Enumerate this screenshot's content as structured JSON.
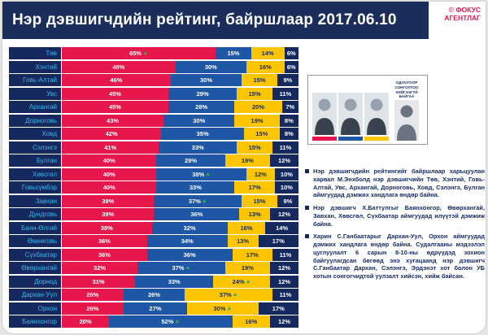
{
  "header": {
    "title": "Нэр дэвшигчдийн рейтинг, байршлаар 2017.06.10",
    "brand_line1": "© ФОКУС",
    "brand_line2": "АГЕНТЛАГ"
  },
  "colors": {
    "header_bg": "#1b2d5b",
    "brand_red": "#e8174b",
    "region_label_bg": "#16295f",
    "region_label_text": "#3ab5ea",
    "marker_green": "#2eb34a"
  },
  "panel": {
    "undecided_caption": "ОДООГООР СОНГОЛТОО ХИЙГЭЭГҮЙ БАЙГАА",
    "photo_colors": [
      "#e8174b",
      "#1d57a5",
      "#fdc500"
    ]
  },
  "bullets": [
    "Нэр дэвшигчдийн рейтингийг байршлаар харьцуулан харвал М.Энхболд нэр дэвшигчийн Төв, Хэнтий, Говь-Алтай, Увс, Архангай, Дорноговь, Ховд, Сэлэнгэ, Булган аймгуудад дэмжих хандлага өндөр байна.",
    "Нэр дэвшигч Х.Баттулгыг Баянхонгор, Өвөрхангай, Завхан, Хөвсгөл, Сүхбаатар аймгуудад илүүтэй дэмжиж байна.",
    "Харин С.Ганбаатарыг Дархан-Уул, Орхон аймгуудад дэмжих хандлага өндөр байна. Судалгааны мэдээлэл цуглуулалт 6 сарын 8-10-ны өдрүүдэд зохион байгуулагдсан бөгөөд энэ хугацаанд нэр дэвшигч С.Ганбаатар Дархан, Сэлэнгэ, Эрдэнэт хот болон УБ хотын сонгогчидтой уулзалт хийсэн, хийж байсан."
  ],
  "chart_data": {
    "type": "bar",
    "stacked": true,
    "orientation": "horizontal",
    "title": "Нэр дэвшигчдийн рейтинг, байршлаар 2017.06.10",
    "unit": "%",
    "xlim": [
      0,
      100
    ],
    "segment_colors": [
      "#e8174b",
      "#1d57a5",
      "#fdc500",
      "#16295f"
    ],
    "rows": [
      {
        "label": "Төв",
        "values": [
          65,
          15,
          14,
          6
        ],
        "marker": 0
      },
      {
        "label": "Хэнтий",
        "values": [
          48,
          30,
          16,
          6
        ],
        "marker": null
      },
      {
        "label": "Говь-Алтай",
        "values": [
          46,
          30,
          15,
          9
        ],
        "marker": null
      },
      {
        "label": "Увс",
        "values": [
          45,
          29,
          15,
          11
        ],
        "marker": null
      },
      {
        "label": "Архангай",
        "values": [
          45,
          28,
          20,
          7
        ],
        "marker": null
      },
      {
        "label": "Дорноговь",
        "values": [
          43,
          30,
          19,
          8
        ],
        "marker": null
      },
      {
        "label": "Ховд",
        "values": [
          42,
          35,
          15,
          8
        ],
        "marker": null
      },
      {
        "label": "Сэлэнгэ",
        "values": [
          41,
          33,
          15,
          11
        ],
        "marker": null
      },
      {
        "label": "Булган",
        "values": [
          40,
          29,
          19,
          12
        ],
        "marker": null
      },
      {
        "label": "Хөвсгөл",
        "values": [
          40,
          38,
          12,
          10
        ],
        "marker": 1
      },
      {
        "label": "Говьсүмбэр",
        "values": [
          40,
          33,
          17,
          10
        ],
        "marker": null
      },
      {
        "label": "Завхан",
        "values": [
          39,
          37,
          15,
          9
        ],
        "marker": 1
      },
      {
        "label": "Дундговь",
        "values": [
          39,
          36,
          13,
          12
        ],
        "marker": null
      },
      {
        "label": "Баян-Өлгий",
        "values": [
          38,
          32,
          16,
          14
        ],
        "marker": null
      },
      {
        "label": "Өмнөговь",
        "values": [
          36,
          34,
          13,
          17
        ],
        "marker": null
      },
      {
        "label": "Сүхбаатар",
        "values": [
          36,
          36,
          17,
          11
        ],
        "marker": null
      },
      {
        "label": "Өвөрхангай",
        "values": [
          32,
          37,
          19,
          12
        ],
        "marker": 1
      },
      {
        "label": "Дорнод",
        "values": [
          31,
          33,
          24,
          12
        ],
        "marker": 2
      },
      {
        "label": "Дархан-Уул",
        "values": [
          26,
          26,
          37,
          11
        ],
        "marker": 2
      },
      {
        "label": "Орхон",
        "values": [
          26,
          27,
          30,
          17
        ],
        "marker": 2
      },
      {
        "label": "Баянхонгор",
        "values": [
          20,
          52,
          16,
          12
        ],
        "marker": 1
      }
    ]
  }
}
